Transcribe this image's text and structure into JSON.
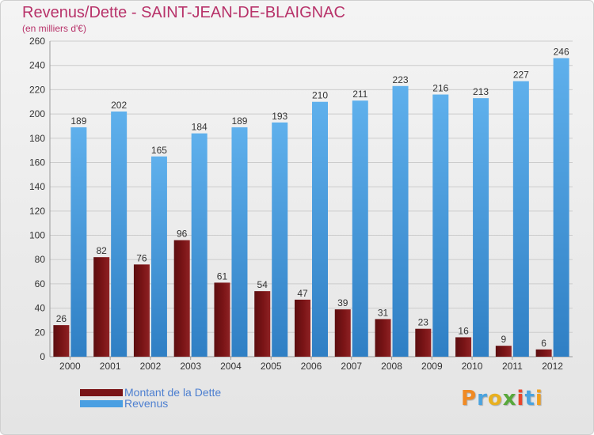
{
  "title": "Revenus/Dette - SAINT-JEAN-DE-BLAIGNAC",
  "subtitle": "(en milliers d'€)",
  "legend": {
    "debt_label": "Montant de la Dette",
    "revenue_label": "Revenus"
  },
  "logo": {
    "letters": [
      "P",
      "r",
      "o",
      "x",
      "i",
      "t",
      "i"
    ],
    "colors": [
      "#f08a24",
      "#4aa3df",
      "#e8b020",
      "#58a83b",
      "#e8452c",
      "#4aa3df",
      "#f0a020"
    ]
  },
  "colors": {
    "debt": "#7a1416",
    "revenue": "#4a9fe2",
    "accent": "#b8336a"
  },
  "chart_data": {
    "type": "bar",
    "title": "Revenus/Dette - SAINT-JEAN-DE-BLAIGNAC",
    "ylabel": "(en milliers d'€)",
    "xlabel": "",
    "categories": [
      "2000",
      "2001",
      "2002",
      "2003",
      "2004",
      "2005",
      "2006",
      "2007",
      "2008",
      "2009",
      "2010",
      "2011",
      "2012"
    ],
    "series": [
      {
        "name": "Montant de la Dette",
        "values": [
          26,
          82,
          76,
          96,
          61,
          54,
          47,
          39,
          31,
          23,
          16,
          9,
          6
        ]
      },
      {
        "name": "Revenus",
        "values": [
          189,
          202,
          165,
          184,
          189,
          193,
          210,
          211,
          223,
          216,
          213,
          227,
          246
        ]
      }
    ],
    "ylim": [
      0,
      260
    ],
    "yticks": [
      0,
      20,
      40,
      60,
      80,
      100,
      120,
      140,
      160,
      180,
      200,
      220,
      240,
      260
    ],
    "grid": true,
    "legend_position": "bottom-left"
  }
}
